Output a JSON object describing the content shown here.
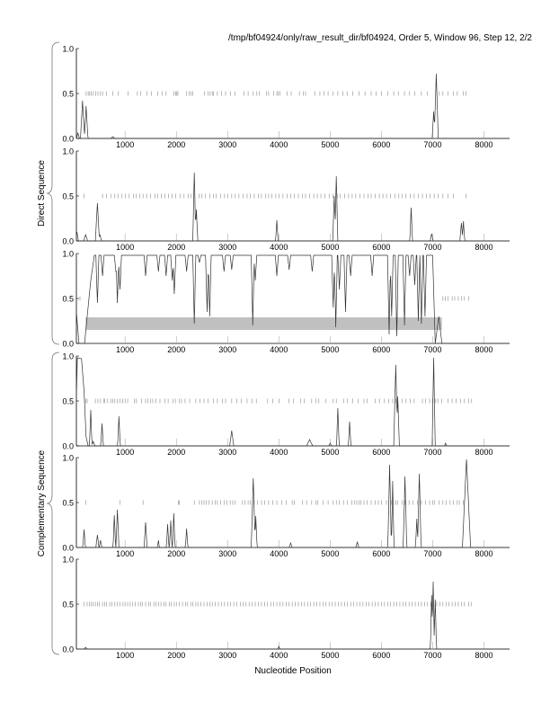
{
  "header": {
    "title": "/tmp/bf04924/only/raw_result_dir/bf04924, Order 5, Window 96, Step 12, 2/2"
  },
  "chart_data": {
    "type": "line",
    "xlabel": "Nucleotide Position",
    "xlim": [
      50,
      8500
    ],
    "ylim": [
      0,
      1
    ],
    "xticks": [
      1000,
      2000,
      3000,
      4000,
      5000,
      6000,
      7000,
      8000
    ],
    "yticks": [
      "0.0",
      "0.5",
      "1.0"
    ],
    "groups": [
      {
        "label": "Direct Sequence",
        "panels": [
          0,
          1,
          2
        ]
      },
      {
        "label": "Complementary Sequence",
        "panels": [
          3,
          4,
          5
        ]
      }
    ],
    "colors": {
      "line": "#333333",
      "marks": "#888888",
      "region": "#c0c0c0"
    },
    "panels": [
      {
        "baseline": 0.0,
        "peaks": [
          [
            80,
            0.06,
            30
          ],
          [
            170,
            0.42,
            40
          ],
          [
            240,
            0.36,
            35
          ],
          [
            760,
            0.02,
            40
          ],
          [
            7020,
            0.3,
            30
          ],
          [
            7070,
            0.72,
            40
          ]
        ],
        "marks": [
          240,
          280,
          310,
          340,
          380,
          430,
          470,
          520,
          560,
          640,
          760,
          870,
          1060,
          1240,
          1300,
          1430,
          1510,
          1640,
          1720,
          1800,
          1950,
          1990,
          2010,
          2030,
          2200,
          2250,
          2290,
          2320,
          2550,
          2620,
          2660,
          2700,
          2720,
          2800,
          2880,
          2960,
          3060,
          3140,
          3320,
          3400,
          3500,
          3570,
          3620,
          3760,
          3800,
          3900,
          3960,
          3990,
          4020,
          4160,
          4240,
          4400,
          4480,
          4520,
          4700,
          4800,
          4880,
          4960,
          5050,
          5150,
          5250,
          5330,
          5440,
          5560,
          5680,
          5800,
          5900,
          6000,
          6120,
          6240,
          6330,
          6450,
          6550,
          6650,
          6780,
          6900,
          7130,
          7200,
          7300,
          7400,
          7480,
          7600,
          7650
        ]
      },
      {
        "baseline": 0.0,
        "peaks": [
          [
            60,
            0.1,
            30
          ],
          [
            230,
            0.07,
            40
          ],
          [
            460,
            0.42,
            40
          ],
          [
            510,
            0.07,
            30
          ],
          [
            2350,
            0.76,
            30
          ],
          [
            2390,
            0.35,
            30
          ],
          [
            3960,
            0.23,
            25
          ],
          [
            5080,
            0.5,
            30
          ],
          [
            5120,
            0.72,
            30
          ],
          [
            6580,
            0.37,
            25
          ],
          [
            6980,
            0.08,
            30
          ],
          [
            7560,
            0.2,
            30
          ],
          [
            7600,
            0.22,
            25
          ]
        ],
        "marks": [
          200,
          560,
          640,
          720,
          800,
          860,
          940,
          1010,
          1080,
          1160,
          1220,
          1290,
          1350,
          1420,
          1500,
          1580,
          1640,
          1710,
          1780,
          1850,
          1920,
          1990,
          2070,
          2150,
          2230,
          2290,
          2360,
          2440,
          2500,
          2570,
          2650,
          2720,
          2780,
          2860,
          2940,
          3000,
          3080,
          3150,
          3220,
          3300,
          3380,
          3440,
          3520,
          3600,
          3660,
          3740,
          3800,
          3860,
          3940,
          4000,
          4080,
          4160,
          4230,
          4300,
          4380,
          4460,
          4520,
          4600,
          4680,
          4750,
          4820,
          4900,
          4980,
          5060,
          5140,
          5200,
          5280,
          5360,
          5430,
          5500,
          5580,
          5660,
          5740,
          5800,
          5880,
          5960,
          6030,
          6100,
          6180,
          6260,
          6340,
          6400,
          6480,
          6560,
          6640,
          6720,
          6800,
          6880,
          6950,
          7030,
          7110,
          7200,
          7300,
          7400,
          7650
        ]
      },
      {
        "baseline": 0.98,
        "range": [
          230,
          7000
        ],
        "start_curve": [
          [
            50,
            0.35
          ],
          [
            100,
            0.0
          ],
          [
            210,
            0.0
          ],
          [
            260,
            0.3
          ],
          [
            330,
            0.7
          ],
          [
            400,
            0.98
          ]
        ],
        "end_curve": [
          [
            7000,
            0.98
          ],
          [
            7050,
            0.0
          ],
          [
            7120,
            0.3
          ],
          [
            7180,
            0.0
          ],
          [
            8500,
            0.0
          ]
        ],
        "dips": [
          [
            460,
            0.45
          ],
          [
            560,
            0.75
          ],
          [
            820,
            0.8
          ],
          [
            850,
            0.45
          ],
          [
            900,
            0.6
          ],
          [
            1400,
            0.75
          ],
          [
            1650,
            0.8
          ],
          [
            1800,
            0.75
          ],
          [
            1920,
            0.7
          ],
          [
            1960,
            0.55
          ],
          [
            2200,
            0.8
          ],
          [
            2350,
            0.22
          ],
          [
            2450,
            0.9
          ],
          [
            2600,
            0.35
          ],
          [
            2650,
            0.3
          ],
          [
            2930,
            0.8
          ],
          [
            3080,
            0.82
          ],
          [
            3490,
            0.2
          ],
          [
            3540,
            0.7
          ],
          [
            3960,
            0.75
          ],
          [
            4200,
            0.82
          ],
          [
            4650,
            0.8
          ],
          [
            5060,
            0.4
          ],
          [
            5110,
            0.18
          ],
          [
            5180,
            0.6
          ],
          [
            5300,
            0.35
          ],
          [
            5400,
            0.75
          ],
          [
            5820,
            0.75
          ],
          [
            6150,
            0.1
          ],
          [
            6200,
            0.3
          ],
          [
            6300,
            0.08
          ],
          [
            6450,
            0.2
          ],
          [
            6550,
            0.75
          ],
          [
            6650,
            0.65
          ],
          [
            6720,
            0.25
          ],
          [
            6780,
            0.22
          ],
          [
            6850,
            0.3
          ]
        ],
        "region": {
          "x": [
            230,
            7180
          ],
          "y": [
            0.15,
            0.29
          ]
        },
        "marks": [
          120,
          7200,
          7250,
          7300,
          7380,
          7430,
          7500,
          7560,
          7620,
          7700
        ]
      },
      {
        "baseline": 0.0,
        "start_curve": [
          [
            50,
            0.55
          ],
          [
            70,
            0.98
          ],
          [
            150,
            0.97
          ],
          [
            200,
            0.6
          ],
          [
            240,
            0.1
          ],
          [
            280,
            0.0
          ]
        ],
        "peaks": [
          [
            330,
            0.4,
            25
          ],
          [
            380,
            0.05,
            30
          ],
          [
            550,
            0.25,
            25
          ],
          [
            880,
            0.33,
            25
          ],
          [
            3080,
            0.17,
            40
          ],
          [
            4600,
            0.07,
            60
          ],
          [
            5000,
            0.03,
            30
          ],
          [
            5150,
            0.42,
            25
          ],
          [
            5380,
            0.27,
            25
          ],
          [
            6280,
            0.9,
            40
          ],
          [
            6320,
            0.55,
            30
          ],
          [
            7020,
            0.98,
            30
          ],
          [
            7250,
            0.03,
            20
          ]
        ],
        "marks": [
          230,
          260,
          420,
          470,
          520,
          580,
          600,
          660,
          720,
          760,
          800,
          850,
          900,
          950,
          1000,
          1050,
          1180,
          1220,
          1320,
          1400,
          1440,
          1500,
          1540,
          1600,
          1680,
          1780,
          1840,
          1930,
          1980,
          2060,
          2100,
          2170,
          2260,
          2380,
          2460,
          2540,
          2620,
          2720,
          2800,
          2900,
          2960,
          3080,
          3180,
          3270,
          3380,
          3480,
          3560,
          3780,
          3880,
          4000,
          4200,
          4280,
          4420,
          4500,
          4640,
          4720,
          4780,
          4920,
          5060,
          5120,
          5260,
          5340,
          5440,
          5550,
          5660,
          5720,
          5880,
          5960,
          6060,
          6140,
          6220,
          6280,
          6400,
          6480,
          6560,
          6640,
          6800,
          6860,
          6940,
          7000,
          7060,
          7100,
          7180,
          7300,
          7380,
          7460,
          7540,
          7620,
          7700,
          7760
        ]
      },
      {
        "baseline": 0.0,
        "peaks": [
          [
            200,
            0.2,
            25
          ],
          [
            460,
            0.14,
            30
          ],
          [
            520,
            0.08,
            25
          ],
          [
            790,
            0.36,
            25
          ],
          [
            850,
            0.42,
            30
          ],
          [
            1400,
            0.28,
            30
          ],
          [
            1650,
            0.08,
            20
          ],
          [
            1830,
            0.26,
            25
          ],
          [
            1890,
            0.3,
            25
          ],
          [
            1950,
            0.38,
            25
          ],
          [
            2200,
            0.21,
            25
          ],
          [
            3500,
            0.77,
            40
          ],
          [
            3550,
            0.35,
            25
          ],
          [
            4230,
            0.05,
            30
          ],
          [
            5530,
            0.06,
            30
          ],
          [
            6160,
            0.92,
            35
          ],
          [
            6220,
            0.74,
            25
          ],
          [
            6460,
            0.79,
            35
          ],
          [
            6690,
            0.32,
            25
          ],
          [
            6740,
            0.82,
            35
          ],
          [
            7660,
            0.98,
            80
          ]
        ],
        "marks": [
          230,
          900,
          1350,
          2040,
          2060,
          2350,
          2450,
          2500,
          2540,
          2580,
          2640,
          2700,
          2760,
          2800,
          2860,
          2930,
          2990,
          3050,
          3100,
          3150,
          3290,
          3340,
          3400,
          3440,
          3520,
          3580,
          3660,
          3720,
          3800,
          3880,
          3960,
          4060,
          4140,
          4260,
          4300,
          4460,
          4540,
          4640,
          4720,
          4760,
          4860,
          4960,
          5060,
          5120,
          5180,
          5260,
          5340,
          5420,
          5480,
          5520,
          5560,
          5600,
          5660,
          5720,
          5800,
          5880,
          5940,
          6000,
          6100,
          6200,
          6280,
          6320,
          6400,
          6460,
          6540,
          6620,
          6700,
          6780,
          6860,
          6940,
          7000,
          7040,
          7120,
          7200,
          7260,
          7340,
          7400,
          7480,
          7520,
          7600
        ]
      },
      {
        "baseline": 0.0,
        "peaks": [
          [
            230,
            0.02,
            30
          ],
          [
            4000,
            0.03,
            20
          ],
          [
            6980,
            0.6,
            25
          ],
          [
            7010,
            0.75,
            25
          ],
          [
            7050,
            0.55,
            25
          ]
        ],
        "marks": [
          200,
          260,
          300,
          340,
          380,
          420,
          460,
          500,
          560,
          600,
          640,
          700,
          740,
          800,
          850,
          900,
          960,
          1000,
          1050,
          1100,
          1150,
          1200,
          1260,
          1300,
          1340,
          1400,
          1460,
          1500,
          1560,
          1600,
          1650,
          1700,
          1760,
          1800,
          1860,
          1900,
          1960,
          2000,
          2060,
          2120,
          2180,
          2220,
          2280,
          2320,
          2380,
          2420,
          2480,
          2540,
          2600,
          2650,
          2700,
          2760,
          2820,
          2880,
          2940,
          3000,
          3060,
          3120,
          3180,
          3250,
          3300,
          3360,
          3420,
          3480,
          3540,
          3600,
          3660,
          3720,
          3780,
          3840,
          3900,
          3960,
          4020,
          4080,
          4140,
          4200,
          4260,
          4320,
          4380,
          4440,
          4500,
          4560,
          4620,
          4680,
          4740,
          4800,
          4860,
          4920,
          4980,
          5040,
          5100,
          5160,
          5220,
          5280,
          5340,
          5400,
          5460,
          5520,
          5580,
          5640,
          5700,
          5760,
          5820,
          5880,
          5940,
          6000,
          6060,
          6120,
          6180,
          6240,
          6300,
          6360,
          6420,
          6480,
          6540,
          6600,
          6660,
          6720,
          6780,
          6840,
          6900,
          6960,
          7020,
          7080,
          7140,
          7200,
          7260,
          7320,
          7380,
          7440,
          7500,
          7560,
          7620,
          7700,
          7750
        ]
      }
    ]
  }
}
